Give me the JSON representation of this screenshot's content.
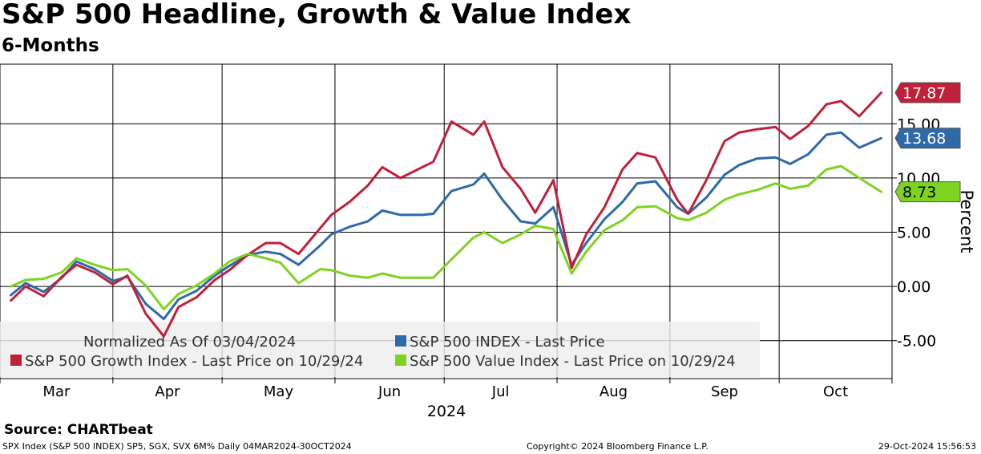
{
  "title": "S&P 500 Headline, Growth & Value Index",
  "subtitle": "6-Months",
  "source": "Source:  CHARTbeat",
  "footer": {
    "left": "SPX Index (S&P 500 INDEX) SP5, SGX, SVX 6M%  Daily 04MAR2024-30OCT2024",
    "center": "Copyright© 2024 Bloomberg Finance L.P.",
    "right": "29-Oct-2024 15:56:53"
  },
  "chart_data": {
    "type": "line",
    "ylabel": "Percent",
    "xlabel": "2024",
    "ylim": [
      -8.5,
      20.5
    ],
    "yticks": [
      -5,
      0,
      5,
      10,
      15
    ],
    "ytick_labels": [
      "-5.00",
      "0.00",
      "5.00",
      "10.00",
      "15.00"
    ],
    "months": [
      "Mar",
      "Apr",
      "May",
      "Jun",
      "Jul",
      "Aug",
      "Sep",
      "Oct"
    ],
    "grid": true,
    "legend_position": "bottom-left",
    "legend_note": "Normalized As Of 03/04/2024",
    "x": [
      "2024-03-04",
      "2024-03-08",
      "2024-03-13",
      "2024-03-18",
      "2024-03-22",
      "2024-03-27",
      "2024-04-01",
      "2024-04-05",
      "2024-04-10",
      "2024-04-15",
      "2024-04-19",
      "2024-04-24",
      "2024-04-29",
      "2024-05-03",
      "2024-05-08",
      "2024-05-13",
      "2024-05-17",
      "2024-05-22",
      "2024-05-28",
      "2024-05-31",
      "2024-06-05",
      "2024-06-10",
      "2024-06-14",
      "2024-06-19",
      "2024-06-25",
      "2024-06-28",
      "2024-07-03",
      "2024-07-09",
      "2024-07-12",
      "2024-07-17",
      "2024-07-22",
      "2024-07-26",
      "2024-07-31",
      "2024-08-05",
      "2024-08-09",
      "2024-08-14",
      "2024-08-19",
      "2024-08-23",
      "2024-08-28",
      "2024-09-03",
      "2024-09-06",
      "2024-09-11",
      "2024-09-16",
      "2024-09-20",
      "2024-09-25",
      "2024-09-30",
      "2024-10-04",
      "2024-10-09",
      "2024-10-14",
      "2024-10-18",
      "2024-10-23",
      "2024-10-29"
    ],
    "series": [
      {
        "name": "S&P 500 INDEX - Last Price",
        "color": "#2e6aa8",
        "last_label": "13.68",
        "values": [
          -0.8,
          0.3,
          -0.5,
          0.8,
          2.3,
          1.6,
          0.5,
          0.9,
          -1.6,
          -3.0,
          -1.2,
          -0.4,
          1.0,
          1.9,
          2.9,
          3.2,
          3.0,
          2.0,
          3.8,
          4.8,
          5.5,
          6.0,
          7.0,
          6.6,
          6.6,
          6.7,
          8.8,
          9.4,
          10.4,
          8.0,
          6.0,
          5.8,
          7.3,
          2.0,
          4.0,
          6.2,
          7.8,
          9.5,
          9.7,
          7.3,
          6.7,
          8.2,
          10.3,
          11.2,
          11.8,
          11.9,
          11.3,
          12.2,
          14.0,
          14.2,
          12.8,
          13.68
        ]
      },
      {
        "name": "S&P 500 Growth Index - Last Price on 10/29/24",
        "color": "#c0203a",
        "last_label": "17.87",
        "values": [
          -1.3,
          0.0,
          -0.9,
          0.9,
          2.0,
          1.3,
          0.2,
          1.0,
          -2.5,
          -4.6,
          -1.9,
          -1.0,
          0.6,
          1.5,
          2.9,
          4.0,
          4.0,
          3.0,
          5.4,
          6.6,
          7.8,
          9.3,
          11.0,
          10.0,
          11.0,
          11.5,
          15.2,
          14.0,
          15.2,
          11.0,
          9.0,
          6.8,
          9.8,
          1.7,
          4.8,
          7.3,
          10.8,
          12.3,
          11.9,
          8.0,
          6.7,
          9.8,
          13.4,
          14.2,
          14.5,
          14.7,
          13.6,
          14.8,
          16.8,
          17.1,
          15.7,
          17.87
        ]
      },
      {
        "name": "S&P 500 Value Index - Last Price on 10/29/24",
        "color": "#7ed321",
        "last_label": "8.73",
        "values": [
          0.0,
          0.6,
          0.7,
          1.3,
          2.6,
          2.0,
          1.5,
          1.6,
          0.1,
          -2.1,
          -0.7,
          0.1,
          1.2,
          2.3,
          3.0,
          2.6,
          2.2,
          0.3,
          1.6,
          1.5,
          1.0,
          0.8,
          1.2,
          0.8,
          0.8,
          0.8,
          2.5,
          4.5,
          5.0,
          4.0,
          4.8,
          5.6,
          5.3,
          1.2,
          3.2,
          5.2,
          6.1,
          7.3,
          7.4,
          6.3,
          6.1,
          6.8,
          8.0,
          8.5,
          8.9,
          9.5,
          9.0,
          9.3,
          10.8,
          11.1,
          10.0,
          8.73
        ]
      }
    ]
  }
}
